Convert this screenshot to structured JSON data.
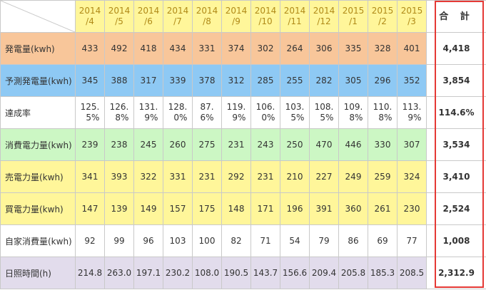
{
  "colors": {
    "header_bg": "#fff69a",
    "row_generation": "#f8c69a",
    "row_predicted": "#8ec9f4",
    "row_achievement": "#ffffff",
    "row_consumption": "#ccf7c4",
    "row_sold": "#fff69a",
    "row_bought": "#fff69a",
    "row_self": "#ffffff",
    "row_sunshine": "#e2dcec",
    "total_border": "#e53935"
  },
  "header": {
    "months": [
      {
        "year": "2014",
        "month": "/4"
      },
      {
        "year": "2014",
        "month": "/5"
      },
      {
        "year": "2014",
        "month": "/6"
      },
      {
        "year": "2014",
        "month": "/7"
      },
      {
        "year": "2014",
        "month": "/8"
      },
      {
        "year": "2014",
        "month": "/9"
      },
      {
        "year": "2014",
        "month": "/10"
      },
      {
        "year": "2014",
        "month": "/11"
      },
      {
        "year": "2014",
        "month": "/12"
      },
      {
        "year": "2015",
        "month": "/1"
      },
      {
        "year": "2015",
        "month": "/2"
      },
      {
        "year": "2015",
        "month": "/3"
      }
    ],
    "total_label": "合 計"
  },
  "rows": [
    {
      "label": "発電量(kwh)",
      "values": [
        "433",
        "492",
        "418",
        "434",
        "331",
        "374",
        "302",
        "264",
        "306",
        "335",
        "328",
        "401"
      ],
      "total": "4,418"
    },
    {
      "label": "予測発電量(kwh)",
      "values": [
        "345",
        "388",
        "317",
        "339",
        "378",
        "312",
        "285",
        "255",
        "282",
        "305",
        "296",
        "352"
      ],
      "total": "3,854"
    },
    {
      "label": "達成率",
      "values": [
        [
          "125.",
          "5%"
        ],
        [
          "126.",
          "8%"
        ],
        [
          "131.",
          "9%"
        ],
        [
          "128.",
          "0%"
        ],
        [
          "87.",
          "6%"
        ],
        [
          "119.",
          "9%"
        ],
        [
          "106.",
          "0%"
        ],
        [
          "103.",
          "5%"
        ],
        [
          "108.",
          "5%"
        ],
        [
          "109.",
          "8%"
        ],
        [
          "110.",
          "8%"
        ],
        [
          "113.",
          "9%"
        ]
      ],
      "total": "114.6%"
    },
    {
      "label": "消費電力量(kwh)",
      "values": [
        "239",
        "238",
        "245",
        "260",
        "275",
        "231",
        "243",
        "250",
        "470",
        "446",
        "330",
        "307"
      ],
      "total": "3,534"
    },
    {
      "label": "売電力量(kwh)",
      "values": [
        "341",
        "393",
        "322",
        "331",
        "231",
        "292",
        "231",
        "210",
        "227",
        "249",
        "259",
        "324"
      ],
      "total": "3,410"
    },
    {
      "label": "買電力量(kwh)",
      "values": [
        "147",
        "139",
        "149",
        "157",
        "175",
        "148",
        "171",
        "196",
        "391",
        "360",
        "261",
        "230"
      ],
      "total": "2,524"
    },
    {
      "label": "自家消費量(kwh)",
      "values": [
        "92",
        "99",
        "96",
        "103",
        "100",
        "82",
        "71",
        "54",
        "79",
        "86",
        "69",
        "77"
      ],
      "total": "1,008"
    },
    {
      "label": "日照時間(h)",
      "values": [
        "214.8",
        "263.0",
        "197.1",
        "230.2",
        "108.0",
        "190.5",
        "143.7",
        "156.6",
        "209.4",
        "205.8",
        "185.3",
        "208.5"
      ],
      "total": "2,312.9"
    }
  ]
}
